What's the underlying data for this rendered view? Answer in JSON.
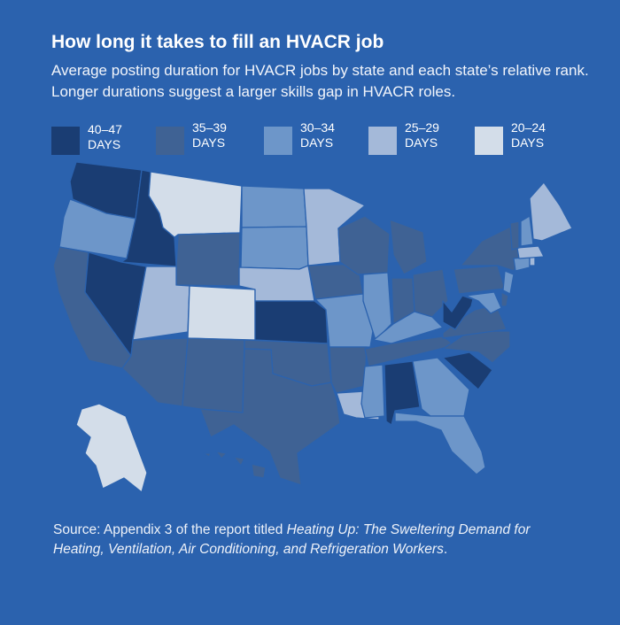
{
  "title": "How long it takes to fill an HVACR job",
  "subtitle": "Average posting duration for HVACR jobs by state and each state’s relative rank. Longer durations suggest a larger skills gap in HVACR roles.",
  "legend": [
    {
      "range": "40–47",
      "unit": "DAYS",
      "color": "#1a3d73"
    },
    {
      "range": "35–39",
      "unit": "DAYS",
      "color": "#3f6294"
    },
    {
      "range": "30–34",
      "unit": "DAYS",
      "color": "#6d96c9"
    },
    {
      "range": "25–29",
      "unit": "DAYS",
      "color": "#a4b9d9"
    },
    {
      "range": "20–24",
      "unit": "DAYS",
      "color": "#d3dde9"
    }
  ],
  "map": {
    "background": "#2b62ae",
    "border_color": "#2b62ae",
    "states": [
      {
        "name": "WA",
        "bin": "40–47"
      },
      {
        "name": "OR",
        "bin": "30–34"
      },
      {
        "name": "CA",
        "bin": "35–39"
      },
      {
        "name": "ID",
        "bin": "40–47"
      },
      {
        "name": "NV",
        "bin": "40–47"
      },
      {
        "name": "MT",
        "bin": "20–24"
      },
      {
        "name": "WY",
        "bin": "35–39"
      },
      {
        "name": "UT",
        "bin": "25–29"
      },
      {
        "name": "CO",
        "bin": "20–24"
      },
      {
        "name": "AZ",
        "bin": "35–39"
      },
      {
        "name": "NM",
        "bin": "35–39"
      },
      {
        "name": "ND",
        "bin": "30–34"
      },
      {
        "name": "SD",
        "bin": "30–34"
      },
      {
        "name": "NE",
        "bin": "25–29"
      },
      {
        "name": "KS",
        "bin": "40–47"
      },
      {
        "name": "OK",
        "bin": "35–39"
      },
      {
        "name": "TX",
        "bin": "35–39"
      },
      {
        "name": "MN",
        "bin": "25–29"
      },
      {
        "name": "IA",
        "bin": "35–39"
      },
      {
        "name": "MO",
        "bin": "30–34"
      },
      {
        "name": "AR",
        "bin": "35–39"
      },
      {
        "name": "LA",
        "bin": "25–29"
      },
      {
        "name": "WI",
        "bin": "35–39"
      },
      {
        "name": "IL",
        "bin": "30–34"
      },
      {
        "name": "MI",
        "bin": "35–39"
      },
      {
        "name": "IN",
        "bin": "35–39"
      },
      {
        "name": "OH",
        "bin": "35–39"
      },
      {
        "name": "KY",
        "bin": "30–34"
      },
      {
        "name": "TN",
        "bin": "35–39"
      },
      {
        "name": "MS",
        "bin": "30–34"
      },
      {
        "name": "AL",
        "bin": "40–47"
      },
      {
        "name": "GA",
        "bin": "30–34"
      },
      {
        "name": "FL",
        "bin": "30–34"
      },
      {
        "name": "SC",
        "bin": "40–47"
      },
      {
        "name": "NC",
        "bin": "35–39"
      },
      {
        "name": "VA",
        "bin": "35–39"
      },
      {
        "name": "WV",
        "bin": "40–47"
      },
      {
        "name": "MD",
        "bin": "30–34"
      },
      {
        "name": "DE",
        "bin": "35–39"
      },
      {
        "name": "PA",
        "bin": "35–39"
      },
      {
        "name": "NJ",
        "bin": "30–34"
      },
      {
        "name": "NY",
        "bin": "35–39"
      },
      {
        "name": "CT",
        "bin": "30–34"
      },
      {
        "name": "RI",
        "bin": "25–29"
      },
      {
        "name": "MA",
        "bin": "25–29"
      },
      {
        "name": "VT",
        "bin": "35–39"
      },
      {
        "name": "NH",
        "bin": "30–34"
      },
      {
        "name": "ME",
        "bin": "25–29"
      },
      {
        "name": "AK",
        "bin": "20–24"
      },
      {
        "name": "HI",
        "bin": "35–39"
      }
    ]
  },
  "source": {
    "prefix": "Source: Appendix 3 of the report titled ",
    "report_title": "Heating Up: The Sweltering Demand for Heating, Ventilation, Air Conditioning, and Refrigeration Workers",
    "suffix": "."
  }
}
